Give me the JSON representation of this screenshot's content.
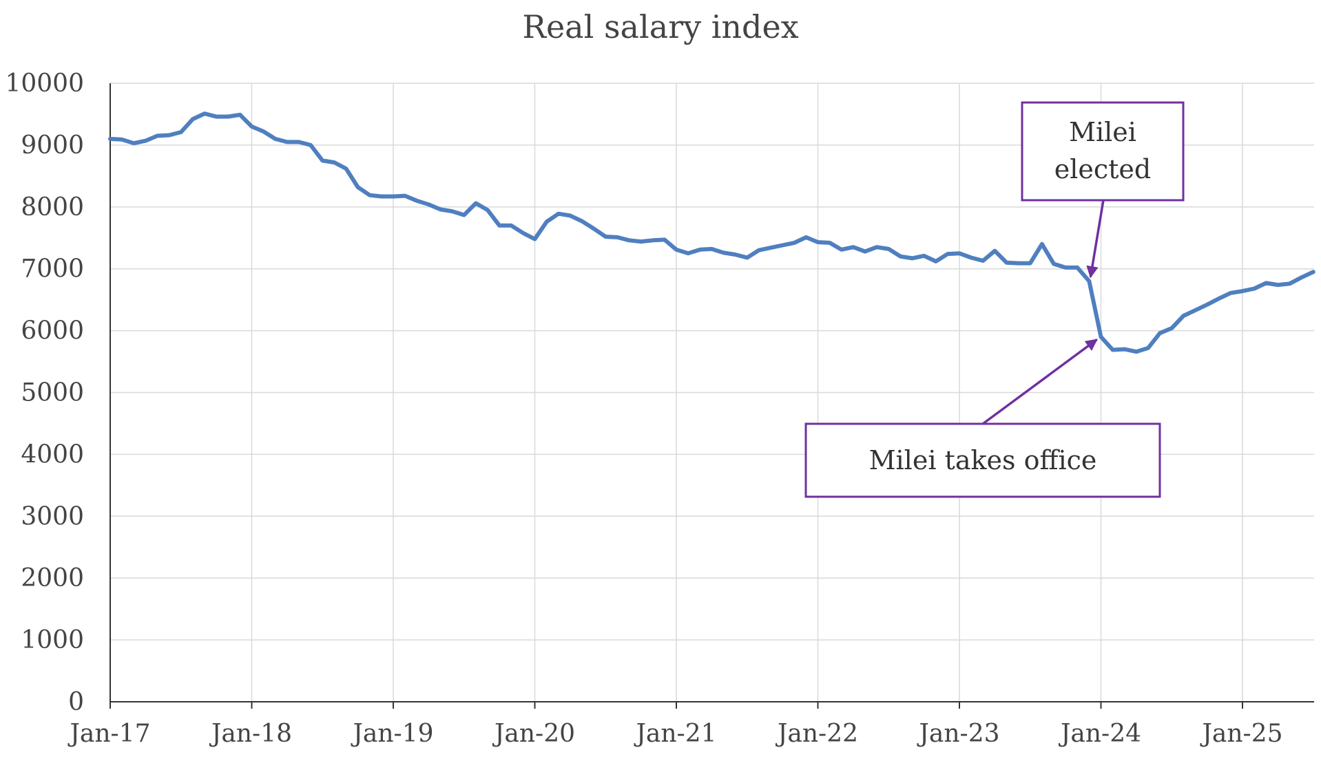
{
  "chart_data": {
    "type": "line",
    "title": "Real salary index",
    "xlabel": "",
    "ylabel": "",
    "ylim": [
      0,
      10000
    ],
    "yticks": [
      0,
      1000,
      2000,
      3000,
      4000,
      5000,
      6000,
      7000,
      8000,
      9000,
      10000
    ],
    "xtick_labels": [
      "Jan-17",
      "Jan-18",
      "Jan-19",
      "Jan-20",
      "Jan-21",
      "Jan-22",
      "Jan-23",
      "Jan-24",
      "Jan-25"
    ],
    "x_start": "Jan-17",
    "x_end": "Jul-25",
    "grid": true,
    "series": [
      {
        "name": "Real salary index",
        "color": "#4f7fbf",
        "values": [
          9100,
          9090,
          9030,
          9070,
          9150,
          9160,
          9210,
          9420,
          9510,
          9460,
          9460,
          9490,
          9300,
          9220,
          9100,
          9050,
          9050,
          9000,
          8750,
          8720,
          8620,
          8320,
          8190,
          8170,
          8170,
          8180,
          8100,
          8040,
          7960,
          7930,
          7870,
          8060,
          7950,
          7700,
          7700,
          7580,
          7480,
          7760,
          7890,
          7860,
          7770,
          7650,
          7520,
          7510,
          7460,
          7440,
          7460,
          7470,
          7310,
          7250,
          7310,
          7320,
          7260,
          7230,
          7180,
          7300,
          7340,
          7380,
          7420,
          7510,
          7430,
          7420,
          7310,
          7350,
          7280,
          7350,
          7320,
          7200,
          7170,
          7210,
          7120,
          7240,
          7250,
          7180,
          7130,
          7290,
          7100,
          7090,
          7090,
          7400,
          7080,
          7020,
          7020,
          6800,
          5900,
          5690,
          5700,
          5660,
          5720,
          5960,
          6040,
          6240,
          6330,
          6420,
          6520,
          6610,
          6640,
          6680,
          6770,
          6740,
          6760,
          6860,
          6950
        ]
      }
    ],
    "annotations": [
      {
        "label_lines": [
          "Milei",
          "elected"
        ],
        "point_index": 83
      },
      {
        "label_lines": [
          "Milei takes office"
        ],
        "point_index": 84
      }
    ]
  }
}
